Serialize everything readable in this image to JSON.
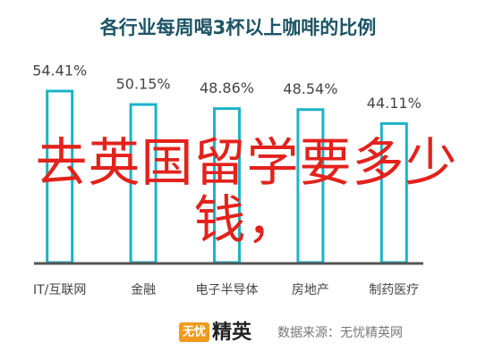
{
  "chart_data": {
    "type": "bar",
    "title": "各行业每周喝3杯以上咖啡的比例",
    "categories": [
      "IT/互联网",
      "金融",
      "电子半导体",
      "房地产",
      "制药医疗"
    ],
    "values": [
      54.41,
      50.15,
      48.86,
      48.54,
      44.11
    ],
    "value_labels": [
      "54.41%",
      "50.15%",
      "48.86%",
      "48.54%",
      "44.11%"
    ],
    "color": "#1bb3c9",
    "annotation": "去英国留学要多少钱，",
    "logo": {
      "badge": "无忧",
      "text": "精英"
    },
    "source": "数据来源：无忧精英网"
  }
}
